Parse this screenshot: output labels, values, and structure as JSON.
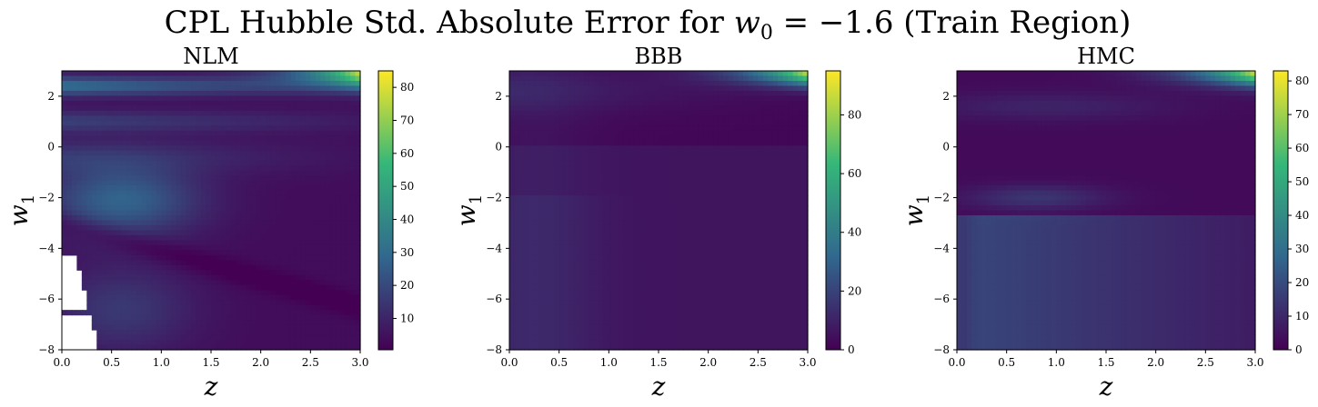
{
  "figure": {
    "title_prefix": "CPL Hubble Std. Absolute Error for ",
    "title_var": "w",
    "title_sub": "0",
    "title_suffix": " = −1.6 (Train Region)"
  },
  "chart_data": [
    {
      "type": "heatmap",
      "title": "NLM",
      "x_var": "z",
      "y_var": "w",
      "y_sub": "1",
      "xlim": [
        0.0,
        3.0
      ],
      "ylim": [
        -8,
        3
      ],
      "x_ticks": [
        "0.0",
        "0.5",
        "1.0",
        "1.5",
        "2.0",
        "2.5",
        "3.0"
      ],
      "y_ticks": [
        "−8",
        "−6",
        "−4",
        "−2",
        "0",
        "2"
      ],
      "colormap": "viridis",
      "vmin": 0.5,
      "vmax": 85,
      "colorbar_ticks": [
        10,
        20,
        30,
        40,
        50,
        60,
        70,
        80
      ],
      "missing_region": "white wedge at low z below w1 ≈ −4.2",
      "colors": [
        "#440154",
        "#31688e",
        "#35b779",
        "#fde725"
      ]
    },
    {
      "type": "heatmap",
      "title": "BBB",
      "x_var": "z",
      "y_var": "w",
      "y_sub": "1",
      "xlim": [
        0.0,
        3.0
      ],
      "ylim": [
        -8,
        3
      ],
      "x_ticks": [
        "0.0",
        "0.5",
        "1.0",
        "1.5",
        "2.0",
        "2.5",
        "3.0"
      ],
      "y_ticks": [
        "−8",
        "−6",
        "−4",
        "−2",
        "0",
        "2"
      ],
      "colormap": "viridis",
      "vmin": 0,
      "vmax": 95,
      "colorbar_ticks": [
        0,
        20,
        40,
        60,
        80
      ],
      "colors": [
        "#440154",
        "#31688e",
        "#35b779",
        "#fde725"
      ]
    },
    {
      "type": "heatmap",
      "title": "HMC",
      "x_var": "z",
      "y_var": "w",
      "y_sub": "1",
      "xlim": [
        0.0,
        3.0
      ],
      "ylim": [
        -8,
        3
      ],
      "x_ticks": [
        "0.0",
        "0.5",
        "1.0",
        "1.5",
        "2.0",
        "2.5",
        "3.0"
      ],
      "y_ticks": [
        "−8",
        "−6",
        "−4",
        "−2",
        "0",
        "2"
      ],
      "colormap": "viridis",
      "vmin": 0,
      "vmax": 83,
      "colorbar_ticks": [
        0,
        10,
        20,
        30,
        40,
        50,
        60,
        70,
        80
      ],
      "colors": [
        "#440154",
        "#31688e",
        "#35b779",
        "#fde725"
      ]
    }
  ]
}
